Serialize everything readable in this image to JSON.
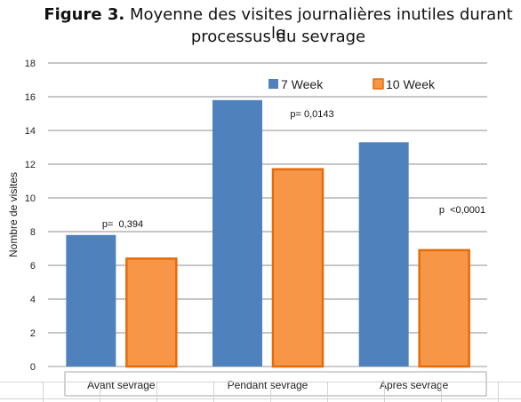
{
  "title": {
    "label": "Figure 3.",
    "text_line1": "Moyenne des visites journalières inutiles durant le",
    "text_line2": "processus du sevrage"
  },
  "chart_data": {
    "type": "bar",
    "title": "Figure 3. Moyenne des visites journalières inutiles durant le processus du sevrage",
    "xlabel": "",
    "ylabel": "Nombre de visites",
    "ylim": [
      0,
      18
    ],
    "yticks": [
      0,
      2,
      4,
      6,
      8,
      10,
      12,
      14,
      16,
      18
    ],
    "grid": true,
    "legend_position": "top-right",
    "categories": [
      "Avant sevrage",
      "Pendant sevrage",
      "Apres sevrage"
    ],
    "series": [
      {
        "name": "7 Week",
        "values": [
          7.8,
          15.8,
          13.3
        ],
        "color": "#4f81bd"
      },
      {
        "name": "10 Week",
        "values": [
          6.4,
          11.7,
          6.9
        ],
        "color": "#f79646",
        "edge_color": "#e46c0a"
      }
    ],
    "annotations": [
      "p=  0,394",
      "p= 0,0143",
      "p  <0,0001"
    ]
  }
}
